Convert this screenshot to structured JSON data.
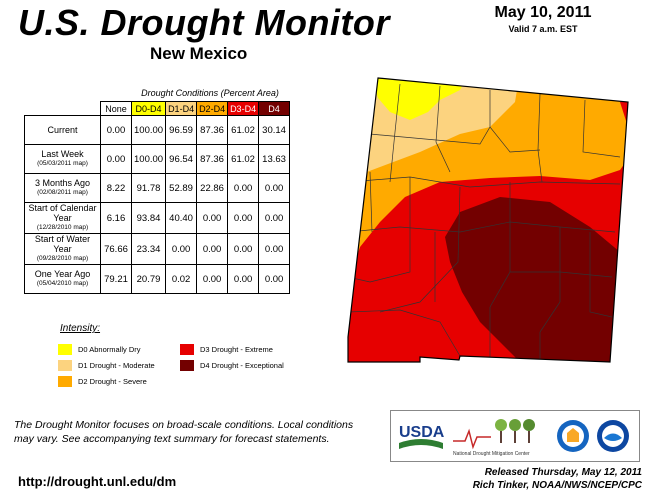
{
  "header": {
    "title": "U.S. Drought Monitor",
    "state": "New Mexico",
    "date": "May 10, 2011",
    "valid": "Valid 7 a.m. EST"
  },
  "table": {
    "caption": "Drought Conditions (Percent Area)",
    "columns": [
      "None",
      "D0-D4",
      "D1-D4",
      "D2-D4",
      "D3-D4",
      "D4"
    ],
    "rows": [
      {
        "label": "Current",
        "sub": "",
        "values": [
          "0.00",
          "100.00",
          "96.59",
          "87.36",
          "61.02",
          "30.14"
        ]
      },
      {
        "label": "Last Week",
        "sub": "(05/03/2011 map)",
        "values": [
          "0.00",
          "100.00",
          "96.54",
          "87.36",
          "61.02",
          "13.63"
        ]
      },
      {
        "label": "3 Months Ago",
        "sub": "(02/08/2011 map)",
        "values": [
          "8.22",
          "91.78",
          "52.89",
          "22.86",
          "0.00",
          "0.00"
        ]
      },
      {
        "label": "Start of Calendar Year",
        "sub": "(12/28/2010 map)",
        "values": [
          "6.16",
          "93.84",
          "40.40",
          "0.00",
          "0.00",
          "0.00"
        ]
      },
      {
        "label": "Start of Water Year",
        "sub": "(09/28/2010 map)",
        "values": [
          "76.66",
          "23.34",
          "0.00",
          "0.00",
          "0.00",
          "0.00"
        ]
      },
      {
        "label": "One Year Ago",
        "sub": "(05/04/2010 map)",
        "values": [
          "79.21",
          "20.79",
          "0.02",
          "0.00",
          "0.00",
          "0.00"
        ]
      }
    ]
  },
  "legend": {
    "title": "Intensity:",
    "items": [
      {
        "label": "D0 Abnormally Dry",
        "color": "#ffff00"
      },
      {
        "label": "D1 Drought - Moderate",
        "color": "#fcd37f"
      },
      {
        "label": "D2 Drought - Severe",
        "color": "#ffaa00"
      },
      {
        "label": "D3 Drought - Extreme",
        "color": "#e60000"
      },
      {
        "label": "D4 Drought - Exceptional",
        "color": "#730000"
      }
    ]
  },
  "footer": {
    "note": "The Drought Monitor focuses on broad-scale conditions. Local conditions may vary. See accompanying text summary for forecast statements.",
    "url": "http://drought.unl.edu/dm",
    "released": "Released Thursday, May 12, 2011",
    "author": "Rich Tinker, NOAA/NWS/NCEP/CPC"
  },
  "logos": {
    "usda": "USDA",
    "ndmc": "National Drought Mitigation Center",
    "icons": [
      "usda-logo-icon",
      "ndmc-logo-icon",
      "doc-seal-icon",
      "noaa-logo-icon"
    ]
  }
}
